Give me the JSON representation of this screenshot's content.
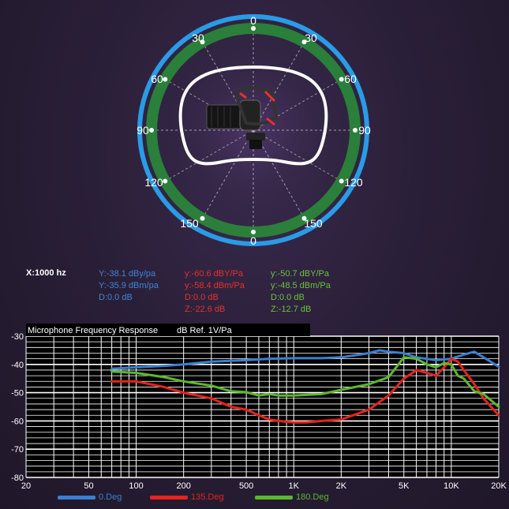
{
  "polar": {
    "top_label": "0",
    "bottom_label": "0",
    "left_labels": [
      "30",
      "60",
      "90",
      "120",
      "150"
    ],
    "right_labels": [
      "30",
      "60",
      "90",
      "120",
      "150"
    ],
    "colors": {
      "outer_ring": "#2a9be6",
      "inner_ring": "#2a8a3a",
      "pattern": "#ffffff"
    }
  },
  "readout": {
    "x_label": "X:1000 hz",
    "columns": [
      {
        "color": "#3f86d8",
        "lines": [
          "Y:-38.1 dBy/pa",
          "Y:-35.9 dBm/pa",
          "D:0.0 dB"
        ]
      },
      {
        "color": "#e8312a",
        "lines": [
          "y:-60.6 dBY/Pa",
          "y:-58.4 dBm/Pa",
          "D:0.0 dB",
          "Z:-22.6 dB"
        ]
      },
      {
        "color": "#6cc23a",
        "lines": [
          "y:-50.7 dBY/Pa",
          "y:-48.5 dBm/Pa",
          "D:0.0 dB",
          "Z:-12.7 dB"
        ]
      }
    ]
  },
  "chart_data": {
    "type": "line",
    "title": "Microphone Frequency Response",
    "ylabel": "dB  Ref. 1V/Pa",
    "x_scale": "log",
    "xlim": [
      20,
      20000
    ],
    "ylim": [
      -80,
      -30
    ],
    "x_ticks": [
      {
        "v": 20,
        "label": "20"
      },
      {
        "v": 50,
        "label": "50"
      },
      {
        "v": 100,
        "label": "100"
      },
      {
        "v": 200,
        "label": "200"
      },
      {
        "v": 500,
        "label": "500"
      },
      {
        "v": 1000,
        "label": "1K"
      },
      {
        "v": 2000,
        "label": "2K"
      },
      {
        "v": 5000,
        "label": "5K"
      },
      {
        "v": 10000,
        "label": "10K"
      },
      {
        "v": 20000,
        "label": "20K"
      }
    ],
    "y_ticks": [
      {
        "v": -30,
        "label": "-30"
      },
      {
        "v": -40,
        "label": "-40"
      },
      {
        "v": -50,
        "label": "-50"
      },
      {
        "v": -60,
        "label": "-60"
      },
      {
        "v": -70,
        "label": "-70"
      },
      {
        "v": -80,
        "label": "-80"
      }
    ],
    "grid": true,
    "legend_position": "bottom",
    "series": [
      {
        "name": "0.Deg",
        "color": "#3a7fd0",
        "x": [
          70,
          100,
          150,
          200,
          300,
          500,
          700,
          1000,
          1500,
          2000,
          3000,
          3500,
          4000,
          5000,
          6000,
          8000,
          10000,
          12000,
          14000,
          16000,
          20000
        ],
        "y": [
          -41.5,
          -41,
          -40.5,
          -40,
          -39,
          -38.5,
          -38,
          -37.8,
          -37.8,
          -37.5,
          -36,
          -35,
          -35.5,
          -36,
          -37.5,
          -38.5,
          -38,
          -36.5,
          -35.5,
          -37.5,
          -40.8
        ]
      },
      {
        "name": "135.Deg",
        "color": "#e8221c",
        "x": [
          70,
          100,
          150,
          200,
          300,
          400,
          500,
          600,
          700,
          800,
          1000,
          1200,
          1500,
          2000,
          3000,
          4000,
          5000,
          6000,
          7000,
          8000,
          9000,
          10000,
          11000,
          12000,
          14000,
          16000,
          20000
        ],
        "y": [
          -46,
          -46,
          -48,
          -50,
          -52,
          -55,
          -56,
          -58,
          -59.5,
          -60,
          -60.5,
          -60.5,
          -60,
          -59.5,
          -56,
          -51,
          -45,
          -42,
          -43,
          -44,
          -41,
          -38,
          -39,
          -42,
          -47,
          -52,
          -58
        ]
      },
      {
        "name": "180.Deg",
        "color": "#5ab82c",
        "x": [
          70,
          100,
          150,
          200,
          300,
          400,
          500,
          600,
          700,
          800,
          1000,
          1500,
          2000,
          3000,
          4000,
          5000,
          6000,
          7000,
          8000,
          9000,
          10000,
          11000,
          12000,
          14000,
          16000,
          20000
        ],
        "y": [
          -42.5,
          -43,
          -44.5,
          -46,
          -47.5,
          -49.5,
          -49.8,
          -51,
          -50.5,
          -51,
          -51,
          -50.5,
          -49,
          -47,
          -44.5,
          -37.5,
          -38,
          -40,
          -41,
          -39.5,
          -40,
          -44,
          -45,
          -49.5,
          -50.5,
          -55
        ]
      }
    ]
  }
}
